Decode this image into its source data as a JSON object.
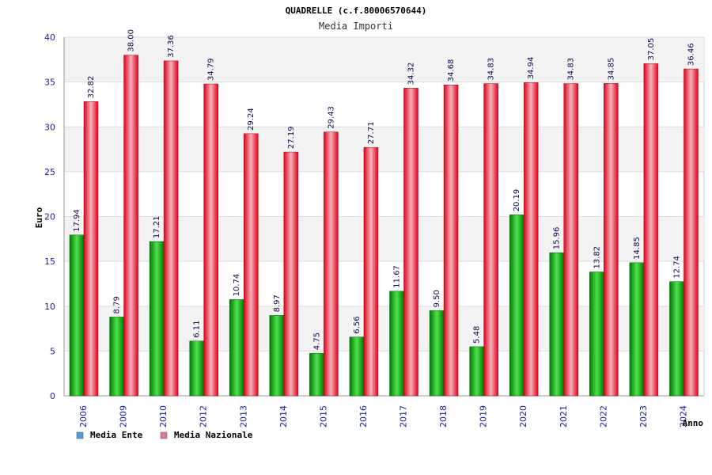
{
  "chart_data": {
    "type": "bar",
    "title": "QUADRELLE (c.f.80006570644)",
    "subtitle": "Media Importi",
    "xlabel": "Anno",
    "ylabel": "Euro",
    "ylim": [
      0,
      40
    ],
    "yticks": [
      0,
      5,
      10,
      15,
      20,
      25,
      30,
      35,
      40
    ],
    "categories": [
      "2006",
      "2009",
      "2010",
      "2012",
      "2013",
      "2014",
      "2015",
      "2016",
      "2017",
      "2018",
      "2019",
      "2020",
      "2021",
      "2022",
      "2023",
      "2024"
    ],
    "series": [
      {
        "name": "Media Ente",
        "color": "#00a800",
        "legend_color": "#5b9bd5",
        "values": [
          17.94,
          8.79,
          17.21,
          6.11,
          10.74,
          8.97,
          4.75,
          6.56,
          11.67,
          9.5,
          5.48,
          20.19,
          15.96,
          13.82,
          14.85,
          12.74
        ],
        "labels": [
          "17.94",
          "8.79",
          "17.21",
          "6.11",
          "10.74",
          "8.97",
          "4.75",
          "6.56",
          "11.67",
          "9.50",
          "5.48",
          "20.19",
          "15.96",
          "13.82",
          "14.85",
          "12.74"
        ]
      },
      {
        "name": "Media Nazionale",
        "color": "#e8001c",
        "legend_color": "#d97aa5",
        "values": [
          32.82,
          38.0,
          37.36,
          34.79,
          29.24,
          27.19,
          29.43,
          27.71,
          34.32,
          34.68,
          34.83,
          34.94,
          34.83,
          34.85,
          37.05,
          36.46
        ],
        "labels": [
          "32.82",
          "38.00",
          "37.36",
          "34.79",
          "29.24",
          "27.19",
          "29.43",
          "27.71",
          "34.32",
          "34.68",
          "34.83",
          "34.94",
          "34.83",
          "34.85",
          "37.05",
          "36.46"
        ]
      }
    ],
    "grid": true,
    "legend_position": "bottom-left"
  }
}
